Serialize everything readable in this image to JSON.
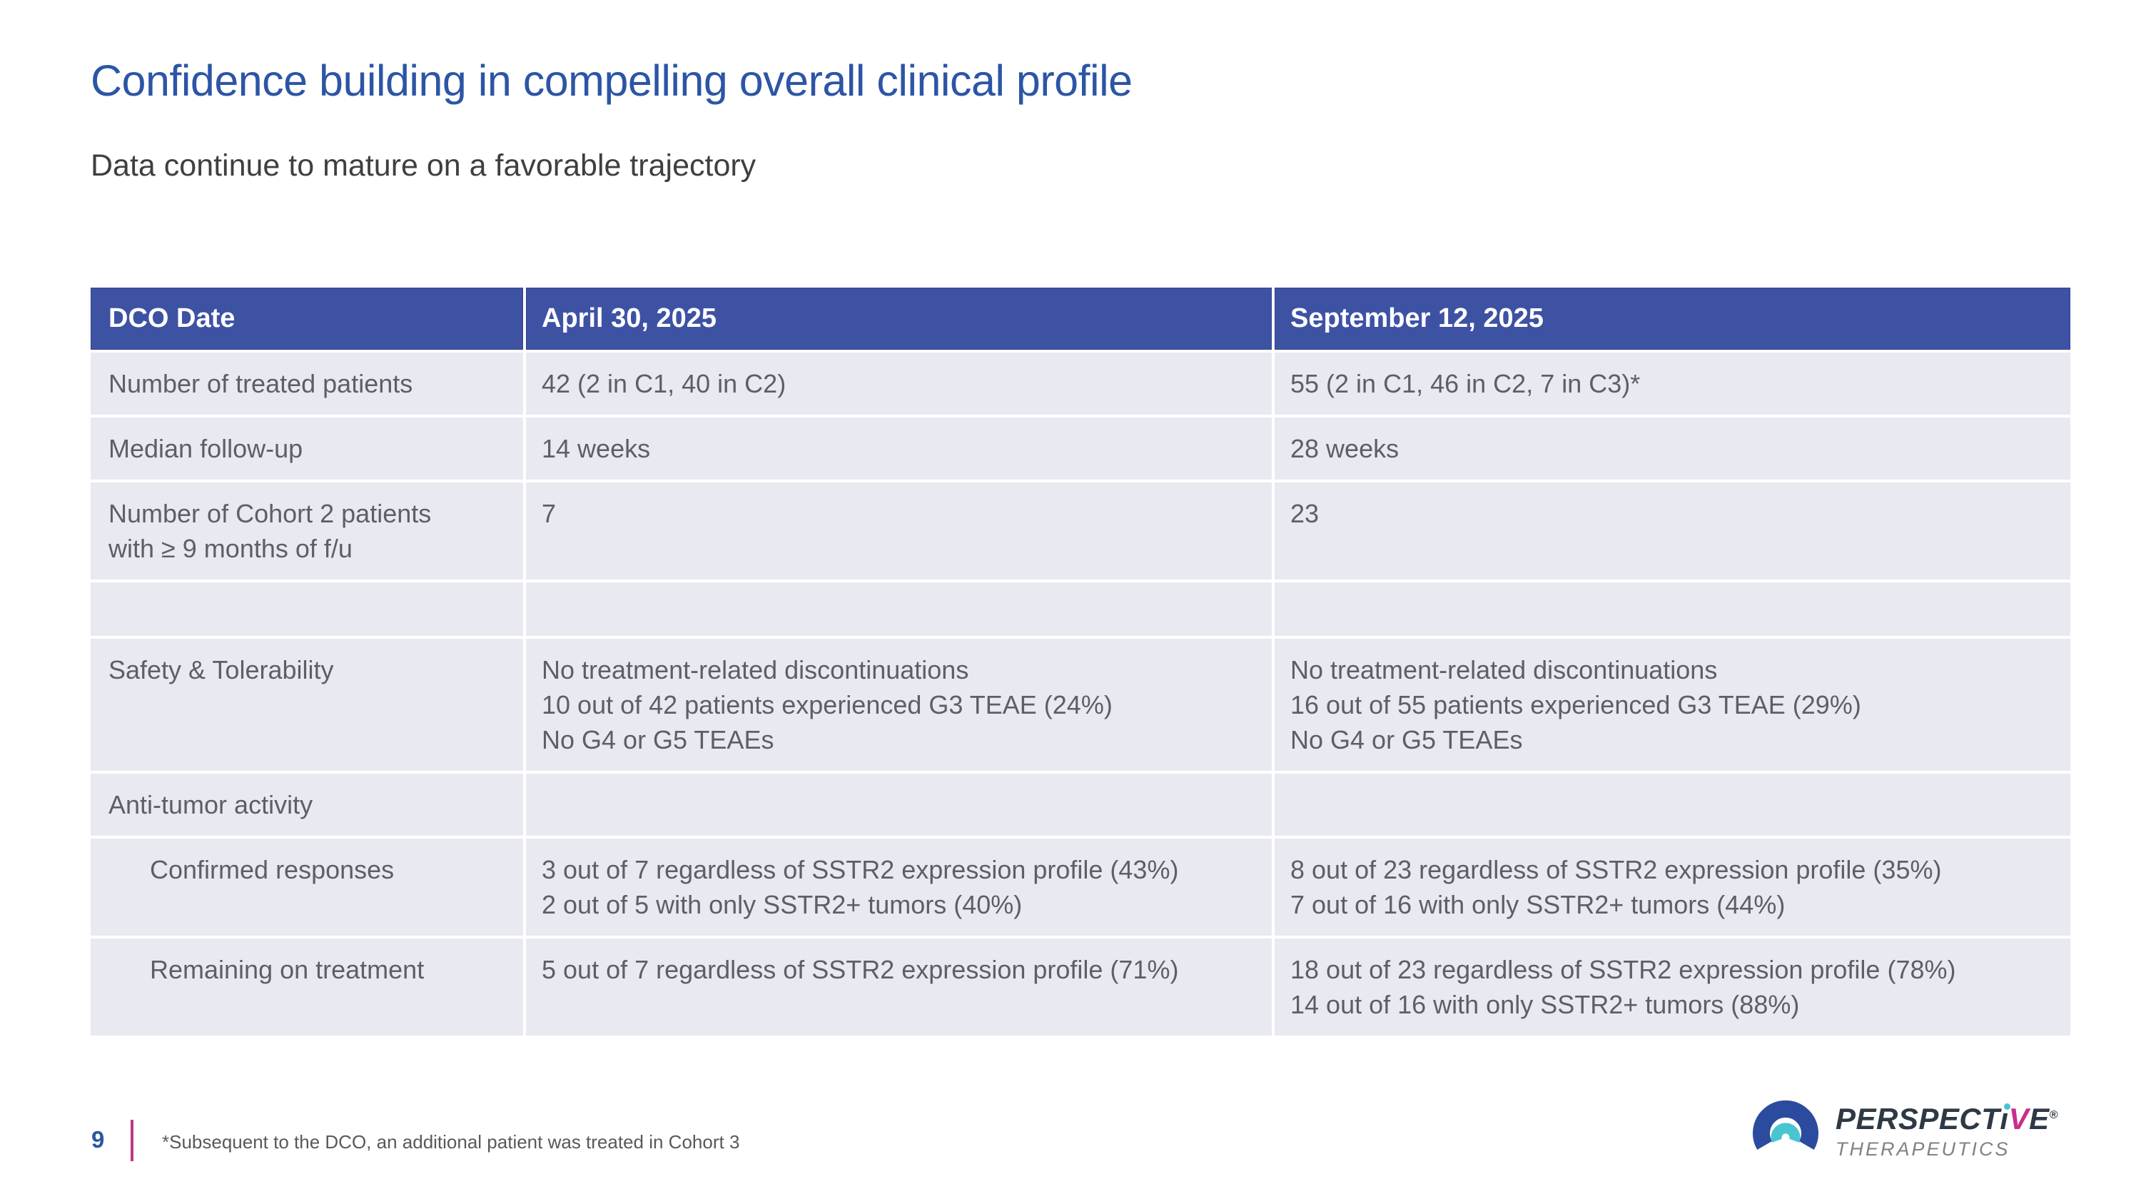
{
  "slide": {
    "title": "Confidence building in compelling overall clinical profile",
    "subtitle": "Data continue to mature on a favorable trajectory",
    "page_number": "9",
    "footnote": "*Subsequent to the DCO, an additional patient was treated in Cohort 3"
  },
  "table": {
    "header": [
      "DCO Date",
      "April 30, 2025",
      "September 12, 2025"
    ],
    "rows": [
      {
        "label": [
          "Number of treated patients"
        ],
        "indent": false,
        "apr30": [
          "42 (2 in C1, 40 in C2)"
        ],
        "sep12": [
          "55 (2 in C1, 46 in C2, 7 in C3)*"
        ]
      },
      {
        "label": [
          "Median follow-up"
        ],
        "indent": false,
        "apr30": [
          "14 weeks"
        ],
        "sep12": [
          "28 weeks"
        ]
      },
      {
        "label": [
          "Number of Cohort 2 patients",
          "with ≥ 9 months of f/u"
        ],
        "indent": false,
        "apr30": [
          "7"
        ],
        "sep12": [
          "23"
        ]
      },
      {
        "label": [],
        "indent": false,
        "apr30": [],
        "sep12": []
      },
      {
        "label": [
          "Safety & Tolerability"
        ],
        "indent": false,
        "apr30": [
          "No treatment-related discontinuations",
          "10 out of 42 patients experienced G3 TEAE (24%)",
          "No G4 or G5 TEAEs"
        ],
        "sep12": [
          "No treatment-related discontinuations",
          "16 out of 55 patients experienced G3 TEAE (29%)",
          "No G4 or G5 TEAEs"
        ]
      },
      {
        "label": [
          "Anti-tumor activity"
        ],
        "indent": false,
        "apr30": [],
        "sep12": []
      },
      {
        "label": [
          "Confirmed responses"
        ],
        "indent": true,
        "apr30": [
          "3 out of 7 regardless of SSTR2 expression profile (43%)",
          "2 out of 5 with only SSTR2+ tumors (40%)"
        ],
        "sep12": [
          "8 out of 23 regardless of SSTR2 expression profile (35%)",
          "7 out of 16 with only SSTR2+ tumors (44%)"
        ]
      },
      {
        "label": [
          "Remaining on treatment"
        ],
        "indent": true,
        "apr30": [
          "5 out of 7 regardless of SSTR2 expression profile (71%)"
        ],
        "sep12": [
          "18 out of 23 regardless of SSTR2 expression profile (78%)",
          "14 out of 16 with only SSTR2+ tumors (88%)"
        ]
      }
    ]
  },
  "logo": {
    "brand_full": "PERSPECTiVE",
    "brand_pre": "PERSPECT",
    "brand_i": "ı",
    "brand_v": "V",
    "brand_e": "E",
    "registered": "®",
    "tagline": "THERAPEUTICS"
  },
  "colors": {
    "header_blue": "#3E52A4",
    "row_bg": "#E9EAF1",
    "title_blue": "#2C55A5",
    "cell_text": "#5E5F66",
    "accent_magenta": "#BE3880",
    "logo_navy": "#2B4B9E",
    "logo_teal": "#49C5D2",
    "wordmark_dark": "#2E3946",
    "wordmark_magenta": "#C92E8C",
    "tagline_gray": "#808285"
  }
}
